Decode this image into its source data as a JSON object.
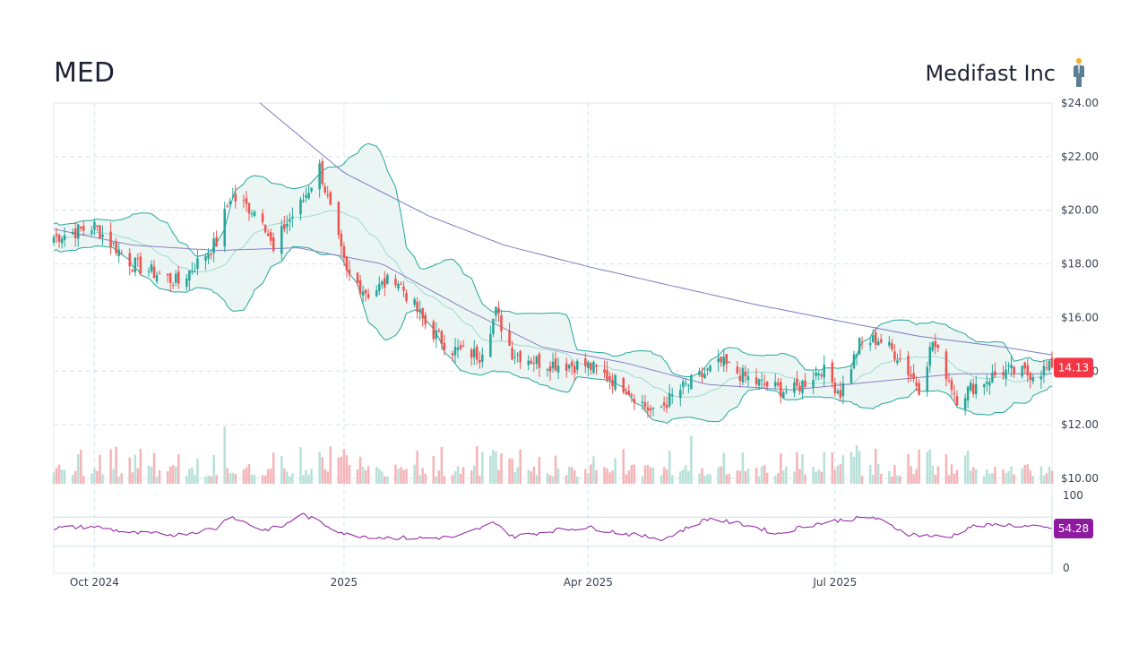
{
  "header": {
    "ticker": "MED",
    "company_name": "Medifast Inc"
  },
  "icons": {
    "logo": "person-figure-icon"
  },
  "colors": {
    "up": "#26a69a",
    "down": "#ef5350",
    "band_fill": "#e6f4f1",
    "band_line": "#26a69a",
    "ma_long": "#7b7bc4",
    "ma_mid": "#8b7fc7",
    "rsi_line": "#8e1aa0",
    "last_price_badge": "#f23645",
    "rsi_badge": "#8e1aa0"
  },
  "chart_data": [
    {
      "type": "candlestick",
      "title": "MED",
      "subtitle": "Medifast Inc",
      "y_axis_side": "right",
      "ylim": [
        10,
        24
      ],
      "y_ticks": [
        "$10.00",
        "$12.00",
        "$14.00",
        "$16.00",
        "$18.00",
        "$20.00",
        "$22.00",
        "$24.00"
      ],
      "x_ticks": [
        "Oct 2024",
        "2025",
        "Apr 2025",
        "Jul 2025"
      ],
      "x_range": [
        "2024-09-16",
        "2025-09-19"
      ],
      "last_price": "14.13",
      "grid": true,
      "overlays": [
        "bollinger-bands",
        "moving-average-20",
        "moving-average-50",
        "moving-average-200"
      ],
      "close_series": {
        "dates": [
          "2024-09-16",
          "2024-10-01",
          "2024-10-15",
          "2024-11-01",
          "2024-11-15",
          "2024-11-20",
          "2024-12-02",
          "2024-12-06",
          "2024-12-10",
          "2024-12-16",
          "2024-12-23",
          "2025-01-02",
          "2025-01-10",
          "2025-01-20",
          "2025-02-01",
          "2025-02-10",
          "2025-02-20",
          "2025-02-26",
          "2025-03-04",
          "2025-03-15",
          "2025-04-01",
          "2025-04-15",
          "2025-04-25",
          "2025-05-05",
          "2025-05-20",
          "2025-06-01",
          "2025-06-15",
          "2025-06-26",
          "2025-07-03",
          "2025-07-10",
          "2025-07-17",
          "2025-07-24",
          "2025-08-01",
          "2025-08-06",
          "2025-08-15",
          "2025-08-22",
          "2025-09-01",
          "2025-09-10",
          "2025-09-19"
        ],
        "close": [
          19.0,
          19.4,
          18.0,
          17.3,
          18.8,
          20.5,
          19.8,
          18.4,
          19.4,
          20.2,
          21.6,
          17.6,
          16.9,
          17.5,
          15.6,
          14.8,
          14.6,
          16.2,
          14.7,
          14.3,
          14.2,
          13.4,
          12.4,
          13.3,
          14.3,
          13.6,
          13.2,
          14.1,
          13.2,
          15.0,
          15.2,
          14.6,
          13.4,
          15.1,
          13.0,
          13.5,
          14.0,
          13.9,
          14.13
        ]
      },
      "ma200": {
        "dates": [
          "2024-12-01",
          "2025-01-01",
          "2025-02-01",
          "2025-03-01",
          "2025-04-01",
          "2025-05-01",
          "2025-06-01",
          "2025-07-01",
          "2025-08-01",
          "2025-09-01",
          "2025-09-19"
        ],
        "values": [
          24.0,
          21.4,
          19.8,
          18.7,
          17.9,
          17.2,
          16.5,
          15.9,
          15.3,
          14.9,
          14.6
        ]
      },
      "ma50": {
        "dates": [
          "2024-09-16",
          "2024-10-15",
          "2024-11-15",
          "2024-12-15",
          "2025-01-15",
          "2025-02-15",
          "2025-03-15",
          "2025-04-15",
          "2025-05-15",
          "2025-06-15",
          "2025-07-15",
          "2025-08-15",
          "2025-09-19"
        ],
        "values": [
          19.3,
          18.7,
          18.5,
          18.6,
          18.0,
          16.3,
          14.9,
          14.3,
          13.5,
          13.3,
          13.6,
          13.9,
          13.9
        ]
      },
      "volume_unit": "relative"
    },
    {
      "type": "line",
      "title": "RSI",
      "ylim": [
        0,
        100
      ],
      "y_ticks": [
        "0",
        "100"
      ],
      "reference_lines": [
        70,
        30
      ],
      "last_value": "54.28",
      "dates": [
        "2024-09-16",
        "2024-10-01",
        "2024-10-15",
        "2024-11-01",
        "2024-11-15",
        "2024-11-20",
        "2024-12-02",
        "2024-12-10",
        "2024-12-16",
        "2025-01-02",
        "2025-01-15",
        "2025-02-01",
        "2025-02-12",
        "2025-02-26",
        "2025-03-04",
        "2025-03-20",
        "2025-04-01",
        "2025-04-15",
        "2025-04-29",
        "2025-05-15",
        "2025-05-30",
        "2025-06-10",
        "2025-06-20",
        "2025-07-03",
        "2025-07-15",
        "2025-07-28",
        "2025-08-12",
        "2025-08-20",
        "2025-09-01",
        "2025-09-10",
        "2025-09-19"
      ],
      "values": [
        55,
        57,
        48,
        46,
        55,
        72,
        52,
        58,
        75,
        46,
        42,
        41,
        43,
        63,
        43,
        52,
        56,
        47,
        40,
        68,
        59,
        47,
        58,
        66,
        70,
        47,
        42,
        57,
        60,
        57,
        54.28
      ]
    }
  ]
}
